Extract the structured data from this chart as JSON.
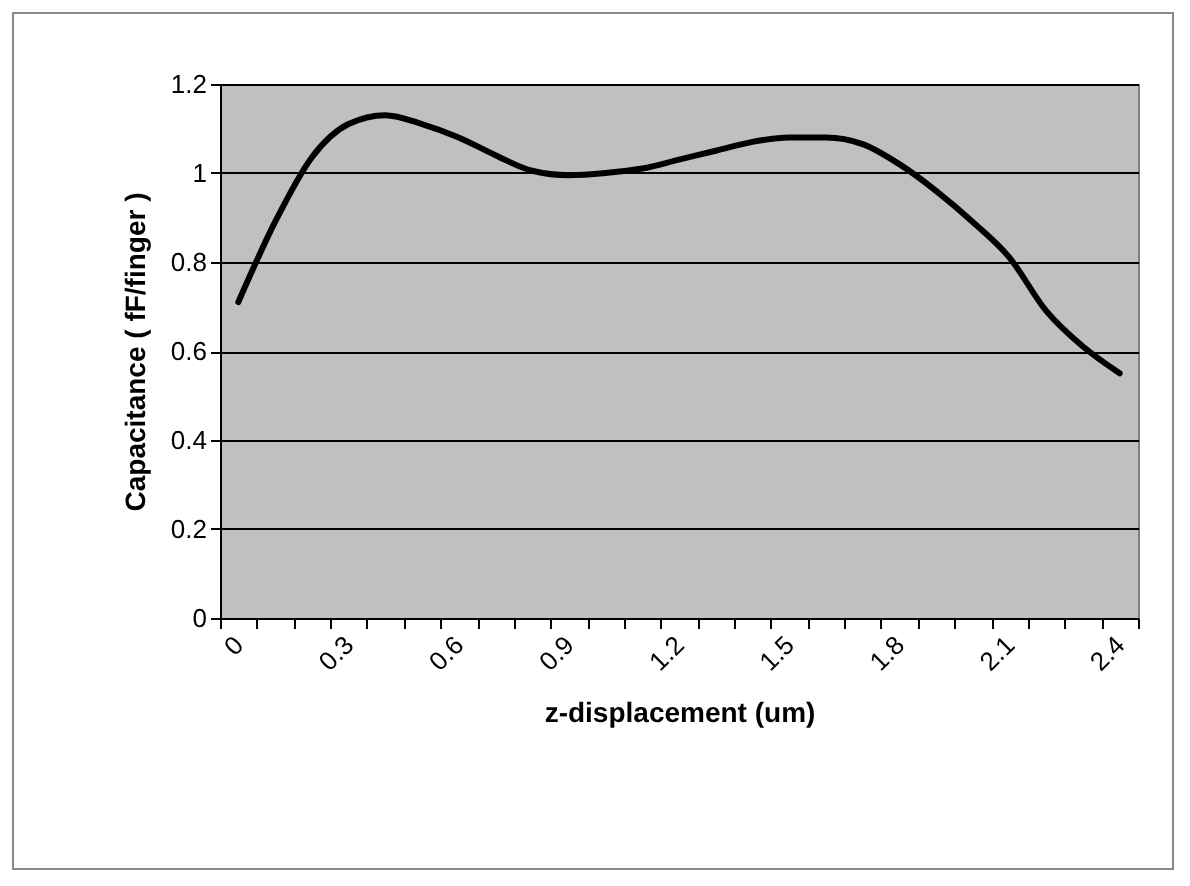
{
  "chart_data": {
    "type": "line",
    "xlabel": "z-displacement (um)",
    "ylabel": "Capacitance ( fF/finger )",
    "categories": [
      "0",
      null,
      null,
      "0.3",
      null,
      null,
      "0.6",
      null,
      null,
      "0.9",
      null,
      null,
      "1.2",
      null,
      null,
      "1.5",
      null,
      null,
      "1.8",
      null,
      null,
      "2.1",
      null,
      null,
      "2.4"
    ],
    "series": [
      {
        "color": "#000000",
        "values": [
          0.71,
          0.89,
          1.035,
          1.11,
          1.13,
          1.11,
          1.08,
          1.04,
          1.005,
          0.995,
          1.0,
          1.01,
          1.03,
          1.05,
          1.07,
          1.08,
          1.08,
          1.065,
          1.02,
          0.96,
          0.89,
          0.81,
          0.69,
          0.61,
          0.55
        ]
      }
    ],
    "ylim": [
      0,
      1.2
    ],
    "yticks": [
      0,
      0.2,
      0.4,
      0.6,
      0.8,
      1,
      1.2
    ],
    "grid": "y",
    "legend": false,
    "marker": "none",
    "line_style": "solid"
  }
}
